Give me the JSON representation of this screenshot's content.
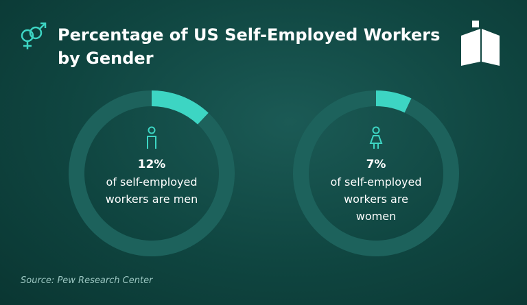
{
  "title": "Percentage of US Self-Employed Workers by Gender",
  "source": "Source: Pew Research Center",
  "chart_data": [
    {
      "type": "donut",
      "values": [
        12,
        88
      ],
      "colors": [
        "#3dd5c3",
        "#1d625c"
      ],
      "value_label": "12%",
      "caption": "of self-employed workers are men",
      "icon": "man"
    },
    {
      "type": "donut",
      "values": [
        7,
        93
      ],
      "colors": [
        "#3dd5c3",
        "#1d625c"
      ],
      "value_label": "7%",
      "caption": "of self-employed workers are women",
      "icon": "woman"
    }
  ]
}
